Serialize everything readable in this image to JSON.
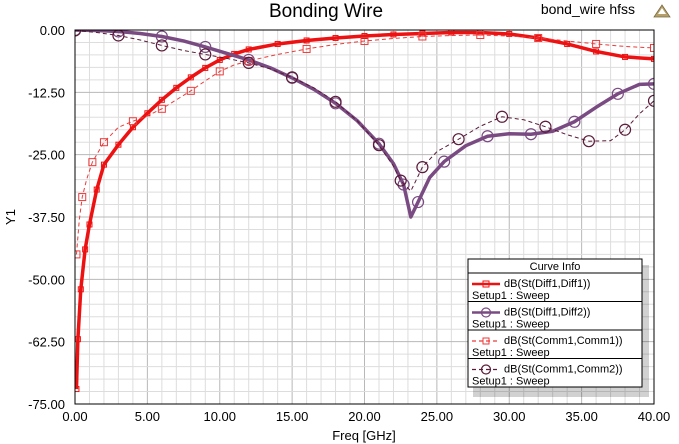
{
  "project_label": "bond_wire hfss",
  "corner_icon": "ansys-logo-icon",
  "chart_data": {
    "type": "line",
    "title": "Bonding Wire",
    "xlabel": "Freq [GHz]",
    "ylabel": "Y1",
    "xlim": [
      0,
      40
    ],
    "ylim": [
      -75,
      0
    ],
    "xticks": [
      "0.00",
      "5.00",
      "10.00",
      "15.00",
      "20.00",
      "25.00",
      "30.00",
      "35.00",
      "40.00"
    ],
    "yticks": [
      "0.00",
      "-12.50",
      "-25.00",
      "-37.50",
      "-50.00",
      "-62.50",
      "-75.00"
    ],
    "grid": true,
    "legend": {
      "title": "Curve Info",
      "placement": "bottom-right",
      "entries": [
        {
          "name": "dB(St(Diff1,Diff1))",
          "setup": "Setup1 : Sweep"
        },
        {
          "name": "dB(St(Diff1,Diff2))",
          "setup": "Setup1 : Sweep"
        },
        {
          "name": "dB(St(Comm1,Comm1))",
          "setup": "Setup1 : Sweep"
        },
        {
          "name": "dB(St(Comm1,Comm2))",
          "setup": "Setup1 : Sweep"
        }
      ]
    },
    "series": [
      {
        "name": "dB(St(Diff1,Diff1))",
        "color": "#ee1111",
        "width": 3.5,
        "dash": "",
        "marker": "square",
        "x": [
          0.1,
          0.2,
          0.4,
          0.7,
          1.0,
          1.5,
          2.0,
          3.0,
          4.0,
          5.0,
          6.0,
          7.0,
          8.0,
          9.0,
          10.0,
          11.0,
          12.0,
          14.0,
          16.0,
          18.0,
          20.0,
          22.0,
          24.0,
          26.0,
          28.0,
          30.0,
          32.0,
          34.0,
          36.0,
          38.0,
          40.0
        ],
        "y": [
          -72,
          -62,
          -52,
          -44,
          -39,
          -32,
          -27,
          -23,
          -19.5,
          -16.7,
          -14,
          -11.6,
          -9.5,
          -7.6,
          -6,
          -4.8,
          -3.9,
          -2.8,
          -2.1,
          -1.6,
          -1.2,
          -0.9,
          -0.7,
          -0.5,
          -0.5,
          -0.8,
          -1.6,
          -2.8,
          -4.3,
          -5.4,
          -5.8
        ]
      },
      {
        "name": "dB(St(Diff1,Diff2))",
        "color": "#7a4b82",
        "width": 3.5,
        "dash": "",
        "marker": "circle",
        "x": [
          0,
          1.5,
          3,
          4.5,
          6,
          7.5,
          9,
          10.5,
          12,
          13.5,
          15,
          16.5,
          18,
          19.5,
          21,
          22,
          22.7,
          23.2,
          23.7,
          24.5,
          25.5,
          27,
          28.5,
          30,
          31.5,
          33,
          34.5,
          36,
          37.5,
          39,
          40
        ],
        "y": [
          0,
          -0.1,
          -0.3,
          -0.7,
          -1.3,
          -2.2,
          -3.4,
          -4.7,
          -6,
          -7.6,
          -9.6,
          -11.9,
          -14.7,
          -18.2,
          -22.8,
          -26.8,
          -31,
          -37.5,
          -34.5,
          -29.6,
          -26.4,
          -23.2,
          -21.3,
          -20.8,
          -20.9,
          -20.3,
          -18.4,
          -15.5,
          -12.8,
          -10.9,
          -10.8
        ]
      },
      {
        "name": "dB(St(Comm1,Comm1))",
        "color": "#ee3a3a",
        "width": 1,
        "dash": "4,3",
        "marker": "square",
        "x": [
          0.1,
          0.3,
          0.5,
          0.8,
          1.2,
          1.6,
          2,
          3,
          4,
          5,
          6,
          7,
          8,
          9,
          10,
          11,
          12,
          14,
          16,
          18,
          20,
          22,
          24,
          26,
          28,
          30,
          32,
          34,
          36,
          38,
          40
        ],
        "y": [
          -45,
          -38,
          -33.5,
          -30,
          -26.5,
          -24.5,
          -22.5,
          -19.5,
          -18.3,
          -17.2,
          -15.8,
          -14,
          -12.2,
          -10.2,
          -8.3,
          -7,
          -6.2,
          -4.9,
          -3.8,
          -2.9,
          -2.2,
          -1.7,
          -1.3,
          -1.1,
          -1.0,
          -1.2,
          -1.6,
          -2.2,
          -2.8,
          -3.3,
          -3.6
        ]
      },
      {
        "name": "dB(St(Comm1,Comm2))",
        "color": "#5a1a3a",
        "width": 1,
        "dash": "4,3",
        "marker": "circle",
        "x": [
          0,
          1.5,
          3,
          4.5,
          6,
          7.5,
          9,
          10.5,
          12,
          13.5,
          15,
          16.5,
          18,
          19.5,
          21,
          22,
          22.5,
          23.2,
          24,
          25,
          26.5,
          28,
          29.5,
          31,
          32.5,
          34,
          35.5,
          37,
          38,
          39,
          40
        ],
        "y": [
          -0.1,
          -0.5,
          -1.1,
          -2,
          -3.1,
          -4.1,
          -4.9,
          -5.7,
          -6.6,
          -7.8,
          -9.5,
          -11.6,
          -14.4,
          -18.2,
          -23.1,
          -27.3,
          -30.2,
          -32.3,
          -27.5,
          -24.4,
          -21.9,
          -19.3,
          -17.4,
          -18,
          -19.4,
          -21,
          -22.3,
          -22.2,
          -20,
          -16.8,
          -14.2
        ]
      }
    ]
  }
}
